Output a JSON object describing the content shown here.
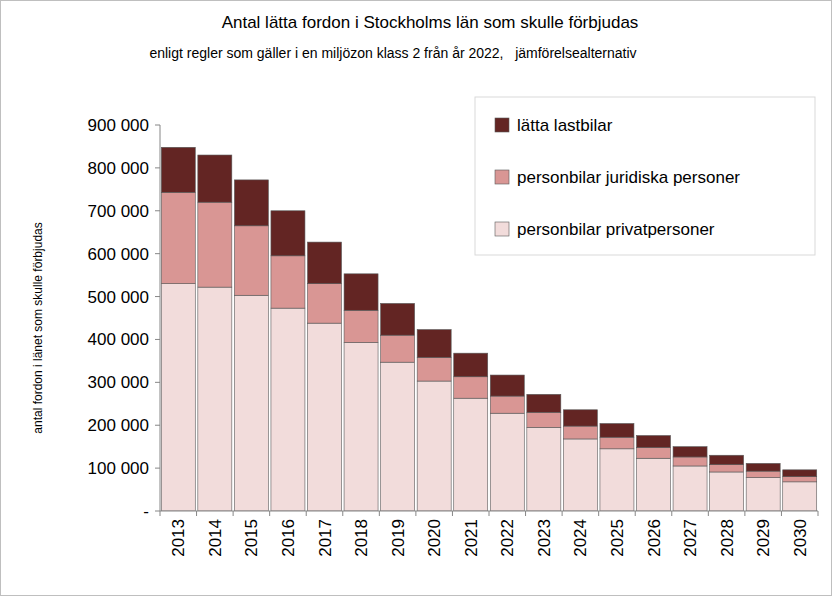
{
  "chart_data": {
    "type": "bar",
    "title": "Antal lätta fordon i Stockholms län som skulle förbjudas",
    "subtitle": "enligt regler som gäller i en miljözon klass 2 från år 2022,   jämförelsealternativ",
    "y_label": "antal fordon i länet som skulle förbjudas",
    "categories": [
      "2013",
      "2014",
      "2015",
      "2016",
      "2017",
      "2018",
      "2019",
      "2020",
      "2021",
      "2022",
      "2023",
      "2024",
      "2025",
      "2026",
      "2027",
      "2028",
      "2029",
      "2030"
    ],
    "series": [
      {
        "name": "personbilar privatpersoner",
        "color": "#f2dcdb",
        "values": [
          530000,
          522000,
          503000,
          473000,
          438000,
          393000,
          347000,
          303000,
          263000,
          228000,
          195000,
          168000,
          145000,
          123000,
          105000,
          91000,
          78000,
          68000
        ]
      },
      {
        "name": "personbilar juridiska personer",
        "color": "#d99694",
        "values": [
          213000,
          198000,
          162000,
          122000,
          92000,
          75000,
          63000,
          55000,
          50000,
          40000,
          35000,
          30000,
          27000,
          25000,
          21000,
          17000,
          15000,
          12000
        ]
      },
      {
        "name": "lätta lastbilar",
        "color": "#632523",
        "values": [
          105000,
          110000,
          107000,
          105000,
          97000,
          85000,
          74000,
          65000,
          55000,
          49000,
          42000,
          38000,
          32000,
          28000,
          24000,
          22000,
          18000,
          16000
        ]
      }
    ],
    "stacked": true,
    "ylim": [
      0,
      900000
    ],
    "yticks": [
      {
        "value": 0,
        "label": "-"
      },
      {
        "value": 100000,
        "label": "100 000"
      },
      {
        "value": 200000,
        "label": "200 000"
      },
      {
        "value": 300000,
        "label": "300 000"
      },
      {
        "value": 400000,
        "label": "400 000"
      },
      {
        "value": 500000,
        "label": "500 000"
      },
      {
        "value": 600000,
        "label": "600 000"
      },
      {
        "value": 700000,
        "label": "700 000"
      },
      {
        "value": 800000,
        "label": "800 000"
      },
      {
        "value": 900000,
        "label": "900 000"
      }
    ],
    "grid": false,
    "legend": "top-right"
  }
}
